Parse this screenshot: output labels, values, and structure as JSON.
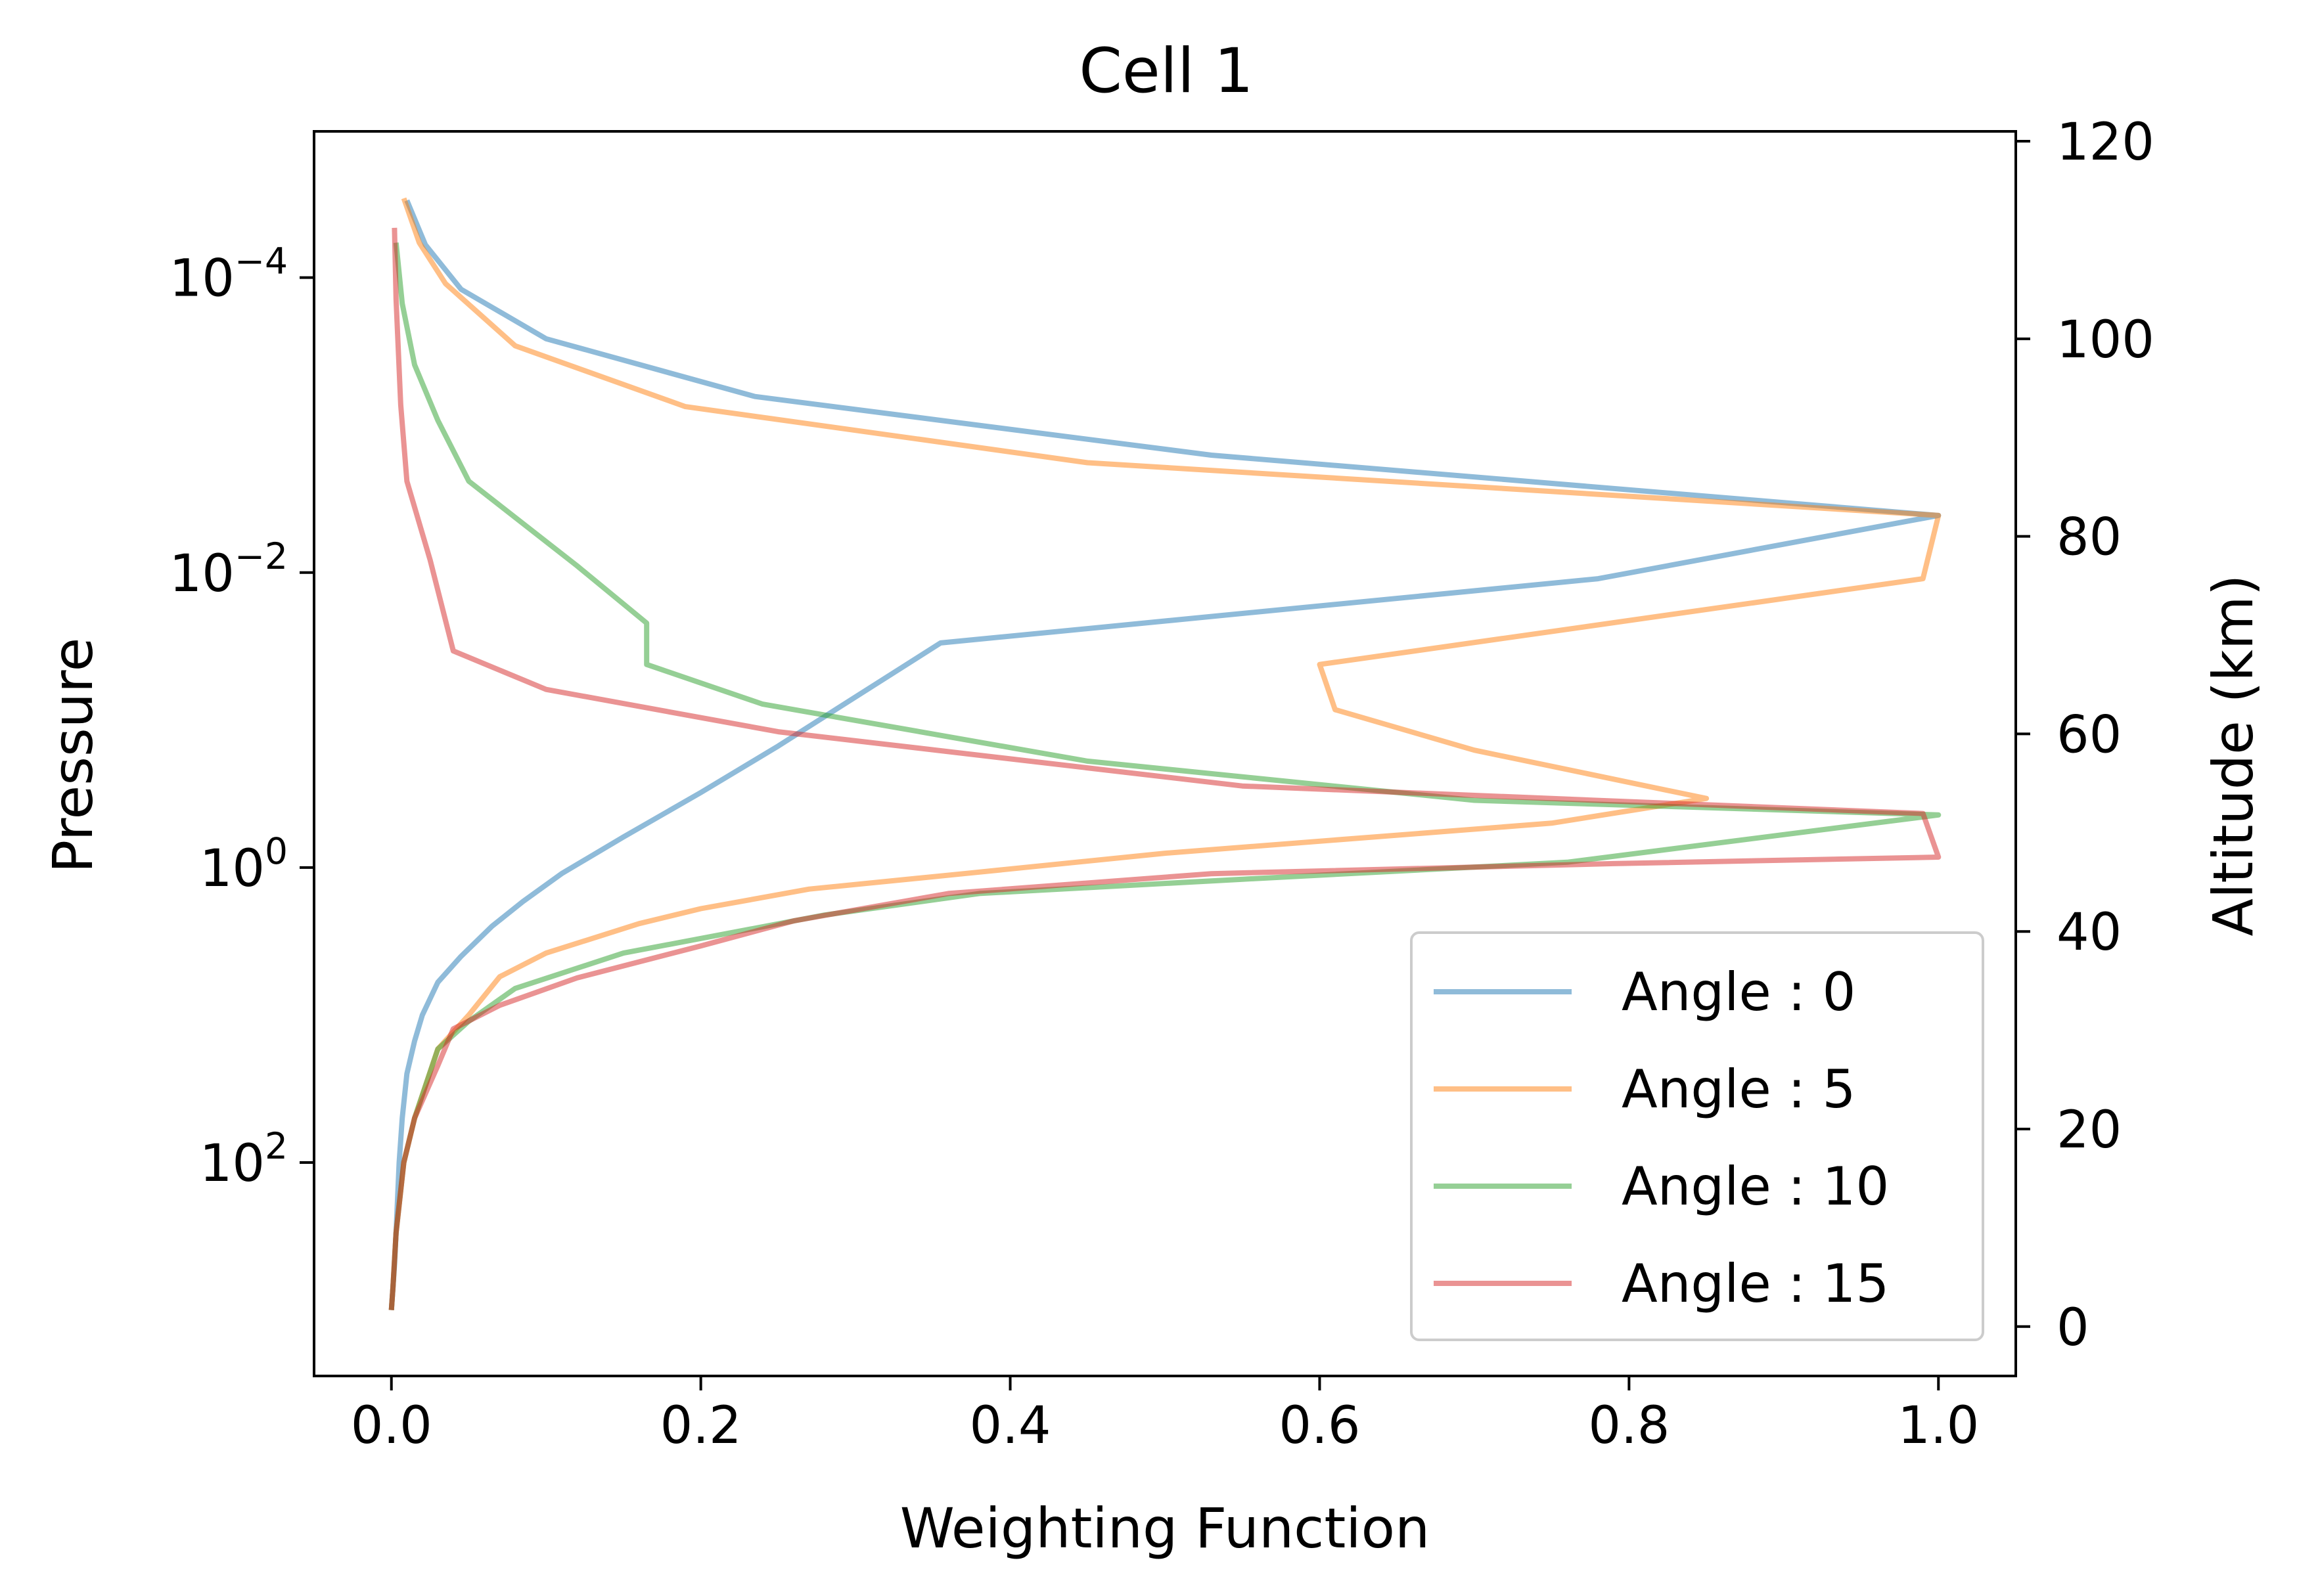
{
  "chart_data": {
    "type": "line",
    "title": "Cell 1",
    "xlabel": "Weighting Function",
    "ylabel": "Pressure",
    "ylabel_right": "Altitude (km)",
    "xlim": [
      -0.05,
      1.05
    ],
    "xticks": [
      0.0,
      0.2,
      0.4,
      0.6,
      0.8,
      1.0
    ],
    "xtick_labels": [
      "0.0",
      "0.2",
      "0.4",
      "0.6",
      "0.8",
      "1.0"
    ],
    "y_scale": "log",
    "y_inverted": true,
    "ylim": [
      1.02e-05,
      2800
    ],
    "yticks": [
      {
        "base": "10",
        "exp": "−4",
        "value": 0.0001
      },
      {
        "base": "10",
        "exp": "−2",
        "value": 0.01
      },
      {
        "base": "10",
        "exp": "0",
        "value": 1
      },
      {
        "base": "10",
        "exp": "2",
        "value": 100
      }
    ],
    "right_axis": {
      "ylim": [
        -5,
        121
      ],
      "ticks": [
        0,
        20,
        40,
        60,
        80,
        100,
        120
      ],
      "tick_labels": [
        "0",
        "20",
        "40",
        "60",
        "80",
        "100",
        "120"
      ]
    },
    "grid": false,
    "legend_position": "lower right",
    "series": [
      {
        "name": "Angle : 0",
        "color": "#1f77b4",
        "points": [
          [
            0.0,
            1000
          ],
          [
            0.001,
            700
          ],
          [
            0.002,
            500
          ],
          [
            0.003,
            300
          ],
          [
            0.005,
            100
          ],
          [
            0.007,
            50
          ],
          [
            0.01,
            25
          ],
          [
            0.015,
            15
          ],
          [
            0.02,
            10
          ],
          [
            0.03,
            6
          ],
          [
            0.045,
            4
          ],
          [
            0.065,
            2.5
          ],
          [
            0.085,
            1.7
          ],
          [
            0.11,
            1.1
          ],
          [
            0.15,
            0.62
          ],
          [
            0.2,
            0.31
          ],
          [
            0.25,
            0.15
          ],
          [
            0.355,
            0.03
          ],
          [
            0.78,
            0.011
          ],
          [
            1.0,
            0.0041
          ],
          [
            0.53,
            0.0016
          ],
          [
            0.235,
            0.00064
          ],
          [
            0.1,
            0.00026
          ],
          [
            0.045,
            0.00012
          ],
          [
            0.022,
            6e-05
          ],
          [
            0.01,
            3e-05
          ]
        ]
      },
      {
        "name": "Angle : 5",
        "color": "#ff7f0e",
        "points": [
          [
            0.0,
            1000
          ],
          [
            0.001,
            700
          ],
          [
            0.003,
            300
          ],
          [
            0.008,
            100
          ],
          [
            0.015,
            50
          ],
          [
            0.03,
            17
          ],
          [
            0.05,
            10
          ],
          [
            0.07,
            5.5
          ],
          [
            0.1,
            3.8
          ],
          [
            0.16,
            2.4
          ],
          [
            0.2,
            1.9
          ],
          [
            0.27,
            1.4
          ],
          [
            0.37,
            1.1
          ],
          [
            0.5,
            0.8
          ],
          [
            0.75,
            0.5
          ],
          [
            0.85,
            0.34
          ],
          [
            0.7,
            0.16
          ],
          [
            0.61,
            0.085
          ],
          [
            0.6,
            0.042
          ],
          [
            0.99,
            0.011
          ],
          [
            1.0,
            0.0041
          ],
          [
            0.45,
            0.0018
          ],
          [
            0.19,
            0.00075
          ],
          [
            0.08,
            0.00029
          ],
          [
            0.035,
            0.00011
          ],
          [
            0.018,
            5.8e-05
          ],
          [
            0.008,
            2.9e-05
          ]
        ]
      },
      {
        "name": "Angle : 10",
        "color": "#2ca02c",
        "points": [
          [
            0.0,
            1000
          ],
          [
            0.001,
            700
          ],
          [
            0.003,
            300
          ],
          [
            0.008,
            100
          ],
          [
            0.015,
            50
          ],
          [
            0.03,
            17
          ],
          [
            0.05,
            11
          ],
          [
            0.08,
            6.6
          ],
          [
            0.15,
            3.8
          ],
          [
            0.28,
            2.1
          ],
          [
            0.38,
            1.5
          ],
          [
            0.55,
            1.2
          ],
          [
            0.76,
            0.92
          ],
          [
            1.0,
            0.44
          ],
          [
            0.7,
            0.35
          ],
          [
            0.45,
            0.19
          ],
          [
            0.24,
            0.078
          ],
          [
            0.165,
            0.042
          ],
          [
            0.165,
            0.022
          ],
          [
            0.12,
            0.009
          ],
          [
            0.05,
            0.0024
          ],
          [
            0.03,
            0.00093
          ],
          [
            0.015,
            0.00039
          ],
          [
            0.007,
            0.00015
          ],
          [
            0.003,
            5.8e-05
          ]
        ]
      },
      {
        "name": "Angle : 15",
        "color": "#d62728",
        "points": [
          [
            0.0,
            1000
          ],
          [
            0.001,
            700
          ],
          [
            0.003,
            300
          ],
          [
            0.008,
            100
          ],
          [
            0.015,
            50
          ],
          [
            0.03,
            22
          ],
          [
            0.04,
            12.4
          ],
          [
            0.07,
            8.6
          ],
          [
            0.12,
            5.6
          ],
          [
            0.2,
            3.4
          ],
          [
            0.26,
            2.3
          ],
          [
            0.36,
            1.5
          ],
          [
            0.53,
            1.1
          ],
          [
            0.79,
            0.94
          ],
          [
            1.0,
            0.85
          ],
          [
            0.99,
            0.43
          ],
          [
            0.55,
            0.28
          ],
          [
            0.25,
            0.12
          ],
          [
            0.1,
            0.062
          ],
          [
            0.04,
            0.034
          ],
          [
            0.025,
            0.0082
          ],
          [
            0.01,
            0.0024
          ],
          [
            0.006,
            0.00073
          ],
          [
            0.003,
            0.00014
          ],
          [
            0.002,
            4.6e-05
          ]
        ]
      }
    ]
  }
}
